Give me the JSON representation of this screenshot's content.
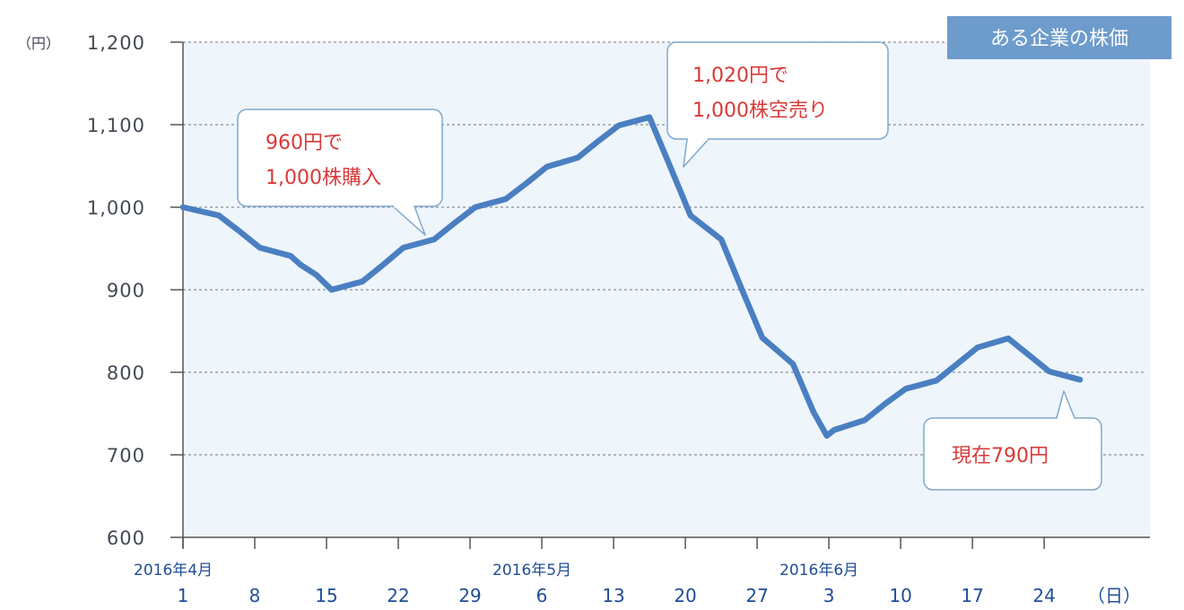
{
  "chart_data": {
    "type": "line",
    "title": "ある企業の株価",
    "y_unit": "（円）",
    "x_unit": "（日）",
    "ylim": [
      600,
      1200
    ],
    "yticks": [
      {
        "value": 600,
        "label": "600"
      },
      {
        "value": 700,
        "label": "700"
      },
      {
        "value": 800,
        "label": "800"
      },
      {
        "value": 900,
        "label": "900"
      },
      {
        "value": 1000,
        "label": "1,000"
      },
      {
        "value": 1100,
        "label": "1,100"
      },
      {
        "value": 1200,
        "label": "1,200"
      }
    ],
    "xlim": [
      0,
      67
    ],
    "xticks": [
      {
        "day": 0,
        "label": "1"
      },
      {
        "day": 7,
        "label": "8"
      },
      {
        "day": 14,
        "label": "15"
      },
      {
        "day": 21,
        "label": "22"
      },
      {
        "day": 28,
        "label": "29"
      },
      {
        "day": 35,
        "label": "6"
      },
      {
        "day": 42,
        "label": "13"
      },
      {
        "day": 49,
        "label": "20"
      },
      {
        "day": 56,
        "label": "27"
      },
      {
        "day": 63,
        "label": "3"
      },
      {
        "day": 70,
        "label": "10"
      },
      {
        "day": 77,
        "label": "17"
      },
      {
        "day": 84,
        "label": "24"
      }
    ],
    "month_labels": [
      {
        "day": 0,
        "label": "2016年4月"
      },
      {
        "day": 35,
        "label": "2016年5月"
      },
      {
        "day": 63,
        "label": "2016年6月"
      }
    ],
    "grid": "horizontal-dotted",
    "series": [
      {
        "color": "#4a7fc1",
        "points": [
          {
            "day": 0,
            "value": 1000
          },
          {
            "day": 3.5,
            "value": 990
          },
          {
            "day": 5.6,
            "value": 970
          },
          {
            "day": 7.5,
            "value": 951
          },
          {
            "day": 10.5,
            "value": 941
          },
          {
            "day": 11.5,
            "value": 930
          },
          {
            "day": 13,
            "value": 918
          },
          {
            "day": 14.5,
            "value": 900
          },
          {
            "day": 17.5,
            "value": 910
          },
          {
            "day": 19.5,
            "value": 930
          },
          {
            "day": 21.5,
            "value": 951
          },
          {
            "day": 24.5,
            "value": 961
          },
          {
            "day": 26.5,
            "value": 981
          },
          {
            "day": 28.5,
            "value": 1000
          },
          {
            "day": 31.5,
            "value": 1010
          },
          {
            "day": 33.5,
            "value": 1029
          },
          {
            "day": 35.5,
            "value": 1049
          },
          {
            "day": 38.5,
            "value": 1060
          },
          {
            "day": 40.5,
            "value": 1080
          },
          {
            "day": 42.5,
            "value": 1099
          },
          {
            "day": 45.5,
            "value": 1109
          },
          {
            "day": 47.5,
            "value": 1050
          },
          {
            "day": 49.5,
            "value": 990
          },
          {
            "day": 52.5,
            "value": 961
          },
          {
            "day": 54.5,
            "value": 901
          },
          {
            "day": 56.5,
            "value": 842
          },
          {
            "day": 59.5,
            "value": 810
          },
          {
            "day": 61.5,
            "value": 752
          },
          {
            "day": 62.8,
            "value": 723
          },
          {
            "day": 63.5,
            "value": 730
          },
          {
            "day": 66.5,
            "value": 742
          },
          {
            "day": 68.5,
            "value": 762
          },
          {
            "day": 70.5,
            "value": 780
          },
          {
            "day": 73.5,
            "value": 790
          },
          {
            "day": 75.5,
            "value": 810
          },
          {
            "day": 77.5,
            "value": 830
          },
          {
            "day": 80.5,
            "value": 841
          },
          {
            "day": 82.5,
            "value": 821
          },
          {
            "day": 84.5,
            "value": 801
          },
          {
            "day": 87.5,
            "value": 791
          }
        ]
      }
    ],
    "annotations": [
      {
        "lines": [
          "960円で",
          "1,000株購入"
        ]
      },
      {
        "lines": [
          "1,020円で",
          "1,000株空売り"
        ]
      },
      {
        "lines": [
          "現在790円"
        ]
      }
    ],
    "colors": {
      "plot_bg": "#eef5fb",
      "line": "#4a7fc1",
      "callout_text": "#d83a3a",
      "callout_border": "#7fa8cc",
      "title_bg": "#6d9bcc",
      "axis": "#555555",
      "x_labels": "#1f4e96"
    }
  }
}
